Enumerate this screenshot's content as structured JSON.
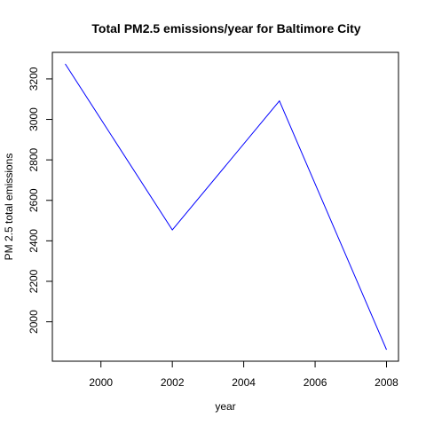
{
  "chart_data": {
    "type": "line",
    "title": "Total PM2.5 emissions/year for Baltimore City",
    "xlabel": "year",
    "ylabel": "PM 2.5 total emissions",
    "x": [
      1999,
      2002,
      2005,
      2008
    ],
    "series": [
      {
        "values": [
          3274.18,
          2453.92,
          3091.35,
          1862.28
        ],
        "color": "#0000ff"
      }
    ],
    "xlim": [
      1999,
      2008
    ],
    "ylim": [
      1862.28,
      3274.18
    ],
    "xticks": [
      2000,
      2002,
      2004,
      2006,
      2008
    ],
    "yticks": [
      2000,
      2200,
      2400,
      2600,
      2800,
      3000,
      3200
    ],
    "grid": false
  }
}
